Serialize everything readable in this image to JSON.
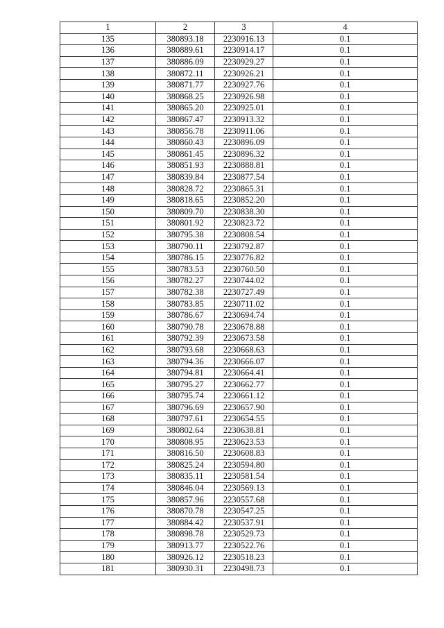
{
  "table": {
    "headers": [
      "1",
      "2",
      "3",
      "4"
    ],
    "rows": [
      [
        "135",
        "380893.18",
        "2230916.13",
        "0.1"
      ],
      [
        "136",
        "380889.61",
        "2230914.17",
        "0.1"
      ],
      [
        "137",
        "380886.09",
        "2230929.27",
        "0.1"
      ],
      [
        "138",
        "380872.11",
        "2230926.21",
        "0.1"
      ],
      [
        "139",
        "380871.77",
        "2230927.76",
        "0.1"
      ],
      [
        "140",
        "380868.25",
        "2230926.98",
        "0.1"
      ],
      [
        "141",
        "380865.20",
        "2230925.01",
        "0.1"
      ],
      [
        "142",
        "380867.47",
        "2230913.32",
        "0.1"
      ],
      [
        "143",
        "380856.78",
        "2230911.06",
        "0.1"
      ],
      [
        "144",
        "380860.43",
        "2230896.09",
        "0.1"
      ],
      [
        "145",
        "380861.45",
        "2230896.32",
        "0.1"
      ],
      [
        "146",
        "380851.93",
        "2230888.81",
        "0.1"
      ],
      [
        "147",
        "380839.84",
        "2230877.54",
        "0.1"
      ],
      [
        "148",
        "380828.72",
        "2230865.31",
        "0.1"
      ],
      [
        "149",
        "380818.65",
        "2230852.20",
        "0.1"
      ],
      [
        "150",
        "380809.70",
        "2230838.30",
        "0.1"
      ],
      [
        "151",
        "380801.92",
        "2230823.72",
        "0.1"
      ],
      [
        "152",
        "380795.38",
        "2230808.54",
        "0.1"
      ],
      [
        "153",
        "380790.11",
        "2230792.87",
        "0.1"
      ],
      [
        "154",
        "380786.15",
        "2230776.82",
        "0.1"
      ],
      [
        "155",
        "380783.53",
        "2230760.50",
        "0.1"
      ],
      [
        "156",
        "380782.27",
        "2230744.02",
        "0.1"
      ],
      [
        "157",
        "380782.38",
        "2230727.49",
        "0.1"
      ],
      [
        "158",
        "380783.85",
        "2230711.02",
        "0.1"
      ],
      [
        "159",
        "380786.67",
        "2230694.74",
        "0.1"
      ],
      [
        "160",
        "380790.78",
        "2230678.88",
        "0.1"
      ],
      [
        "161",
        "380792.39",
        "2230673.58",
        "0.1"
      ],
      [
        "162",
        "380793.68",
        "2230668.63",
        "0.1"
      ],
      [
        "163",
        "380794.36",
        "2230666.07",
        "0.1"
      ],
      [
        "164",
        "380794.81",
        "2230664.41",
        "0.1"
      ],
      [
        "165",
        "380795.27",
        "2230662.77",
        "0.1"
      ],
      [
        "166",
        "380795.74",
        "2230661.12",
        "0.1"
      ],
      [
        "167",
        "380796.69",
        "2230657.90",
        "0.1"
      ],
      [
        "168",
        "380797.61",
        "2230654.55",
        "0.1"
      ],
      [
        "169",
        "380802.64",
        "2230638.81",
        "0.1"
      ],
      [
        "170",
        "380808.95",
        "2230623.53",
        "0.1"
      ],
      [
        "171",
        "380816.50",
        "2230608.83",
        "0.1"
      ],
      [
        "172",
        "380825.24",
        "2230594.80",
        "0.1"
      ],
      [
        "173",
        "380835.11",
        "2230581.54",
        "0.1"
      ],
      [
        "174",
        "380846.04",
        "2230569.13",
        "0.1"
      ],
      [
        "175",
        "380857.96",
        "2230557.68",
        "0.1"
      ],
      [
        "176",
        "380870.78",
        "2230547.25",
        "0.1"
      ],
      [
        "177",
        "380884.42",
        "2230537.91",
        "0.1"
      ],
      [
        "178",
        "380898.78",
        "2230529.73",
        "0.1"
      ],
      [
        "179",
        "380913.77",
        "2230522.76",
        "0.1"
      ],
      [
        "180",
        "380926.12",
        "2230518.23",
        "0.1"
      ],
      [
        "181",
        "380930.31",
        "2230498.73",
        "0.1"
      ]
    ]
  }
}
